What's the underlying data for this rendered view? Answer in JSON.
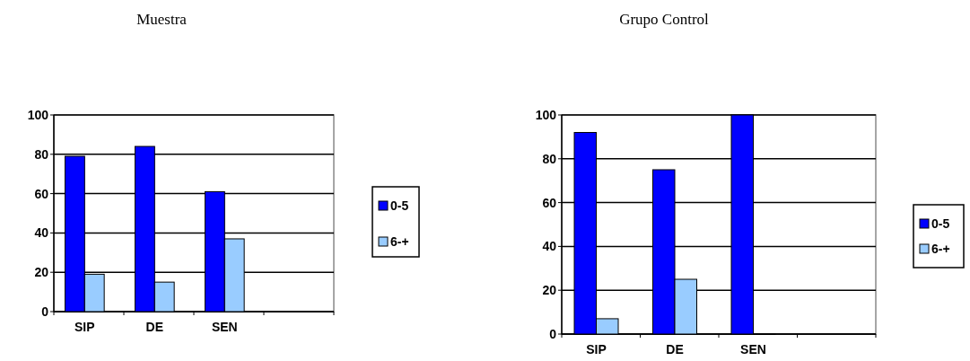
{
  "chart_data": [
    {
      "type": "bar",
      "title": "Muestra",
      "categories": [
        "SIP",
        "DE",
        "SEN",
        null
      ],
      "series": [
        {
          "name": "0-5",
          "color": "#0000ff",
          "values": [
            79,
            84,
            61,
            null
          ]
        },
        {
          "name": "6-+",
          "color": "#99ccff",
          "values": [
            19,
            15,
            37,
            null
          ]
        }
      ],
      "ylim": [
        0,
        100
      ],
      "yticks": [
        0,
        20,
        40,
        60,
        80,
        100
      ],
      "grid": "y",
      "legend": "right"
    },
    {
      "type": "bar",
      "title": "Grupo Control",
      "categories": [
        "SIP",
        "DE",
        "SEN",
        null
      ],
      "series": [
        {
          "name": "0-5",
          "color": "#0000ff",
          "values": [
            92,
            75,
            100,
            null
          ]
        },
        {
          "name": "6-+",
          "color": "#99ccff",
          "values": [
            7,
            25,
            0,
            null
          ]
        }
      ],
      "ylim": [
        0,
        100
      ],
      "yticks": [
        0,
        20,
        40,
        60,
        80,
        100
      ],
      "grid": "y",
      "legend": "right"
    }
  ]
}
